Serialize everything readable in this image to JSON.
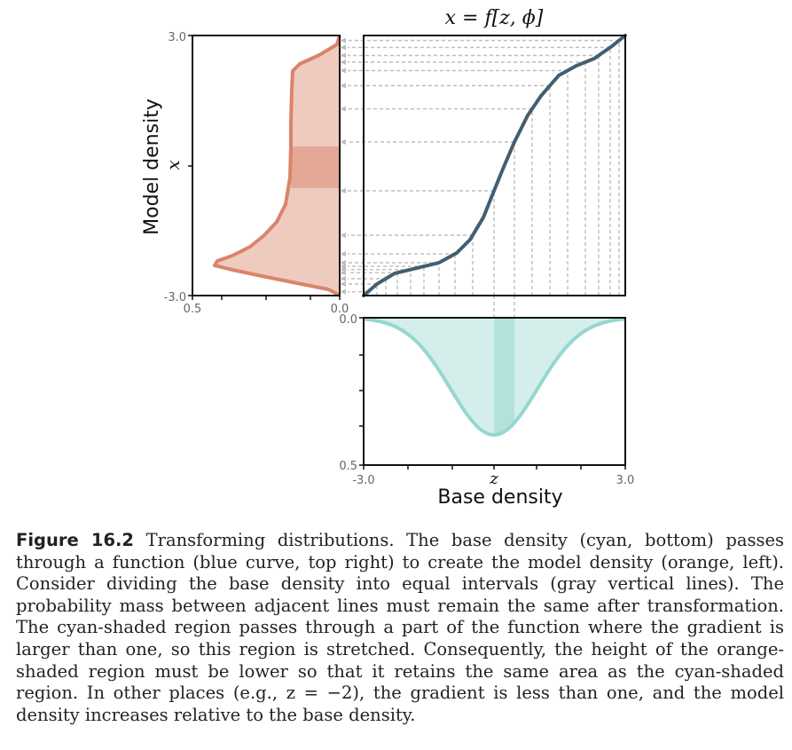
{
  "figure": {
    "title_eq": "x = f[z, ϕ]",
    "left_panel": {
      "ylabel": "Model density",
      "ylabel_var": "x",
      "y_ticks": [
        "3.0",
        "-3.0"
      ],
      "x_ticks": [
        "0.5",
        "0.0"
      ]
    },
    "bottom_panel": {
      "xlabel": "Base density",
      "xlabel_var": "z",
      "x_ticks": [
        "-3.0",
        "3.0"
      ],
      "y_ticks": [
        "0.0",
        "0.5"
      ]
    },
    "colors": {
      "orange": "#d9846b",
      "orange_fill": "#efcbbf",
      "orange_dark": "#e0a38e",
      "cyan": "#94d8d0",
      "cyan_fill": "#d4eeeb",
      "cyan_dark": "#b3e2dd",
      "blue": "#445e70",
      "gray": "#bdbdbd"
    }
  },
  "caption": {
    "label": "Figure 16.2",
    "text": "Transforming distributions. The base density (cyan, bottom) passes through a function (blue curve, top right) to create the model density (orange, left). Consider dividing the base density into equal intervals (gray vertical lines). The probability mass between adjacent lines must remain the same after transformation. The cyan-shaded region passes through a part of the function where the gradient is larger than one, so this region is stretched. Consequently, the height of the orange-shaded region must be lower so that it retains the same area as the cyan-shaded region. In other places (e.g., z = −2), the gradient is less than one, and the model density increases relative to the base density."
  }
}
